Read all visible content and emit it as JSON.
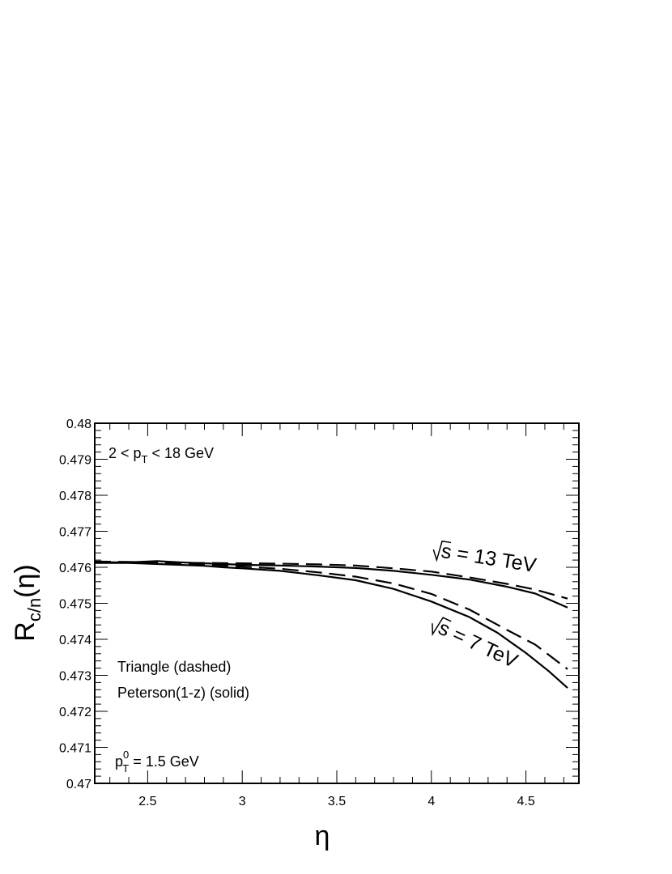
{
  "chart_data": {
    "type": "line",
    "xlabel": "η",
    "ylabel": {
      "main": "R",
      "sub": "c/n",
      "tail": "(η)"
    },
    "xlim": [
      2.22,
      4.78
    ],
    "ylim": [
      0.47,
      0.48
    ],
    "xticks": [
      {
        "value": 2.5,
        "label": "2.5"
      },
      {
        "value": 3,
        "label": "3"
      },
      {
        "value": 3.5,
        "label": "3.5"
      },
      {
        "value": 4,
        "label": "4"
      },
      {
        "value": 4.5,
        "label": "4.5"
      }
    ],
    "yticks": [
      {
        "value": 0.47,
        "label": "0.47"
      },
      {
        "value": 0.471,
        "label": "0.471"
      },
      {
        "value": 0.472,
        "label": "0.472"
      },
      {
        "value": 0.473,
        "label": "0.473"
      },
      {
        "value": 0.474,
        "label": "0.474"
      },
      {
        "value": 0.475,
        "label": "0.475"
      },
      {
        "value": 0.476,
        "label": "0.476"
      },
      {
        "value": 0.477,
        "label": "0.477"
      },
      {
        "value": 0.478,
        "label": "0.478"
      },
      {
        "value": 0.479,
        "label": "0.479"
      },
      {
        "value": 0.48,
        "label": "0.48"
      }
    ],
    "annotations": {
      "pt_range": {
        "pre": "2 < p",
        "sub": "T",
        "post": " < 18 GeV"
      },
      "triangle": "Triangle (dashed)",
      "peterson": "Peterson(1-z) (solid)",
      "pt0": {
        "pre": "p",
        "sup": "0",
        "sub": "T",
        "post": " = 1.5 GeV"
      },
      "label_13": {
        "root": "s",
        "rest": " = 13 TeV"
      },
      "label_7": {
        "root": "s",
        "rest": " = 7 TeV"
      }
    },
    "series": [
      {
        "style": "dashed",
        "group": "13 TeV",
        "x": [
          2.22,
          2.4,
          2.6,
          2.8,
          3.0,
          3.2,
          3.4,
          3.6,
          3.8,
          4.0,
          4.2,
          4.4,
          4.55,
          4.72
        ],
        "y": [
          0.47616,
          0.47615,
          0.47613,
          0.47612,
          0.47611,
          0.4761,
          0.47608,
          0.47605,
          0.47597,
          0.47588,
          0.47572,
          0.47554,
          0.47538,
          0.47513
        ]
      },
      {
        "style": "solid",
        "group": "13 TeV",
        "x": [
          2.22,
          2.4,
          2.55,
          2.7,
          2.9,
          3.0,
          3.2,
          3.4,
          3.6,
          3.8,
          4.0,
          4.2,
          4.4,
          4.55,
          4.72
        ],
        "y": [
          0.47614,
          0.47614,
          0.47617,
          0.47613,
          0.47609,
          0.47607,
          0.47605,
          0.47602,
          0.47598,
          0.4759,
          0.47579,
          0.47566,
          0.47546,
          0.47527,
          0.47488
        ]
      },
      {
        "style": "dashed",
        "group": "7 TeV",
        "x": [
          2.22,
          2.4,
          2.6,
          2.8,
          3.0,
          3.2,
          3.4,
          3.6,
          3.8,
          4.0,
          4.2,
          4.4,
          4.55,
          4.72
        ],
        "y": [
          0.47614,
          0.47613,
          0.47611,
          0.47608,
          0.47602,
          0.47596,
          0.47586,
          0.47574,
          0.47555,
          0.47526,
          0.47483,
          0.47426,
          0.47385,
          0.47317
        ]
      },
      {
        "style": "solid",
        "group": "7 TeV",
        "x": [
          2.22,
          2.4,
          2.6,
          2.8,
          2.9,
          3.0,
          3.2,
          3.4,
          3.6,
          3.8,
          4.0,
          4.2,
          4.35,
          4.5,
          4.62,
          4.72
        ],
        "y": [
          0.47612,
          0.47612,
          0.47608,
          0.47604,
          0.476,
          0.47597,
          0.4759,
          0.47578,
          0.47564,
          0.4754,
          0.47505,
          0.47462,
          0.47418,
          0.47362,
          0.47312,
          0.47265
        ]
      }
    ]
  }
}
